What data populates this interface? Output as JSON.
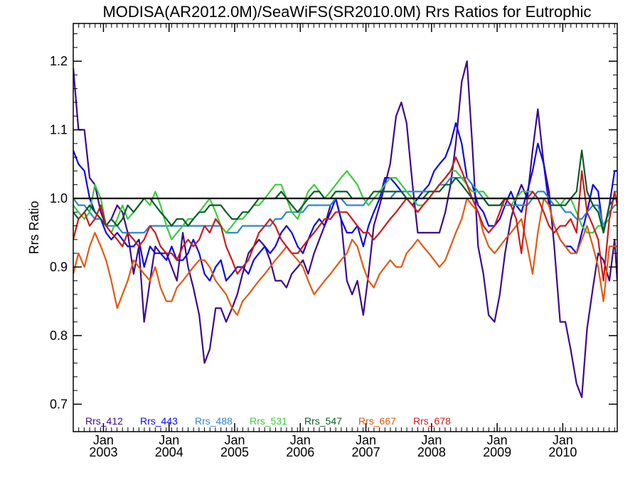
{
  "chart_data": {
    "type": "line",
    "title": "MODISA(AR2012.0M)/SeaWiFS(SR2010.0M)  Rrs Ratios for Eutrophic",
    "ylabel": "Rrs Ratio",
    "xlabel": "",
    "xlim": [
      2002.54,
      2010.83
    ],
    "ylim": [
      0.66,
      1.255
    ],
    "yticks": [
      0.7,
      0.8,
      0.9,
      1.0,
      1.1,
      1.2
    ],
    "ytick_labels": [
      "0.7",
      "0.8",
      "0.9",
      "1.0",
      "1.1",
      "1.2"
    ],
    "xticks": [
      {
        "value": 2003.0,
        "month": "Jan",
        "year": "2003"
      },
      {
        "value": 2004.0,
        "month": "Jan",
        "year": "2004"
      },
      {
        "value": 2005.0,
        "month": "Jan",
        "year": "2005"
      },
      {
        "value": 2006.0,
        "month": "Jan",
        "year": "2006"
      },
      {
        "value": 2007.0,
        "month": "Jan",
        "year": "2007"
      },
      {
        "value": 2008.0,
        "month": "Jan",
        "year": "2008"
      },
      {
        "value": 2009.0,
        "month": "Jan",
        "year": "2009"
      },
      {
        "value": 2010.0,
        "month": "Jan",
        "year": "2010"
      }
    ],
    "reference_line": 1.0,
    "x": [
      2002.54,
      2002.62,
      2002.71,
      2002.79,
      2002.87,
      2002.96,
      2003.04,
      2003.12,
      2003.21,
      2003.29,
      2003.37,
      2003.46,
      2003.54,
      2003.62,
      2003.71,
      2003.79,
      2003.87,
      2003.96,
      2004.04,
      2004.12,
      2004.21,
      2004.29,
      2004.37,
      2004.46,
      2004.54,
      2004.62,
      2004.71,
      2004.79,
      2004.87,
      2004.96,
      2005.04,
      2005.12,
      2005.21,
      2005.29,
      2005.37,
      2005.46,
      2005.54,
      2005.62,
      2005.71,
      2005.79,
      2005.87,
      2005.96,
      2006.04,
      2006.12,
      2006.21,
      2006.29,
      2006.37,
      2006.46,
      2006.54,
      2006.62,
      2006.71,
      2006.79,
      2006.87,
      2006.96,
      2007.04,
      2007.12,
      2007.21,
      2007.29,
      2007.37,
      2007.46,
      2007.54,
      2007.62,
      2007.71,
      2007.79,
      2007.87,
      2007.96,
      2008.04,
      2008.12,
      2008.21,
      2008.29,
      2008.37,
      2008.46,
      2008.54,
      2008.62,
      2008.71,
      2008.79,
      2008.87,
      2008.96,
      2009.04,
      2009.12,
      2009.21,
      2009.29,
      2009.37,
      2009.46,
      2009.54,
      2009.62,
      2009.71,
      2009.79,
      2009.87,
      2009.96,
      2010.04,
      2010.12,
      2010.21,
      2010.29,
      2010.37,
      2010.46,
      2010.54,
      2010.62,
      2010.71,
      2010.79,
      2010.83
    ],
    "series": [
      {
        "name": "Rrs_412",
        "color": "#3d0a8c",
        "values": [
          1.19,
          1.1,
          1.1,
          1.03,
          1.02,
          0.98,
          0.96,
          0.97,
          0.99,
          0.98,
          0.95,
          0.89,
          0.93,
          0.82,
          0.88,
          0.93,
          0.92,
          0.92,
          0.9,
          0.88,
          0.95,
          0.9,
          0.87,
          0.83,
          0.76,
          0.78,
          0.84,
          0.84,
          0.82,
          0.84,
          0.86,
          0.89,
          0.92,
          0.93,
          0.94,
          0.93,
          0.91,
          0.88,
          0.88,
          0.87,
          0.89,
          0.9,
          0.91,
          0.89,
          0.92,
          0.94,
          0.96,
          0.99,
          1.0,
          0.97,
          0.88,
          0.86,
          0.88,
          0.83,
          0.89,
          0.96,
          0.99,
          1.02,
          1.05,
          1.12,
          1.14,
          1.11,
          1.02,
          0.95,
          0.95,
          0.95,
          0.95,
          0.95,
          0.98,
          1.02,
          1.08,
          1.17,
          1.2,
          1.08,
          0.93,
          0.89,
          0.83,
          0.82,
          0.86,
          0.92,
          0.97,
          1.0,
          1.02,
          1.0,
          1.07,
          1.13,
          1.05,
          1.01,
          0.93,
          0.82,
          0.82,
          0.78,
          0.73,
          0.71,
          0.81,
          0.87,
          0.92,
          0.91,
          0.88,
          0.94,
          0.88
        ]
      },
      {
        "name": "Rrs_443",
        "color": "#0a0ae6",
        "values": [
          1.07,
          1.05,
          1.04,
          1.0,
          0.98,
          0.97,
          0.95,
          0.94,
          0.95,
          0.94,
          0.93,
          0.93,
          0.94,
          0.9,
          0.93,
          0.92,
          0.92,
          0.91,
          0.93,
          0.91,
          0.91,
          0.92,
          0.94,
          0.92,
          0.89,
          0.88,
          0.9,
          0.91,
          0.88,
          0.89,
          0.9,
          0.9,
          0.89,
          0.91,
          0.92,
          0.93,
          0.92,
          0.93,
          0.95,
          0.96,
          0.95,
          0.93,
          0.92,
          0.94,
          0.96,
          0.97,
          0.96,
          0.98,
          1.0,
          0.97,
          0.95,
          0.95,
          0.96,
          0.93,
          0.96,
          0.98,
          1.0,
          1.03,
          1.03,
          1.02,
          1.01,
          1.0,
          0.99,
          1.0,
          1.01,
          1.02,
          1.04,
          1.05,
          1.06,
          1.08,
          1.11,
          1.08,
          1.03,
          1.02,
          0.99,
          0.98,
          0.96,
          0.96,
          0.97,
          0.99,
          1.01,
          0.99,
          0.98,
          1.01,
          1.04,
          1.08,
          1.05,
          0.99,
          0.96,
          0.94,
          0.93,
          0.93,
          0.92,
          0.95,
          0.98,
          1.02,
          1.01,
          0.95,
          0.99,
          1.04,
          1.04
        ]
      },
      {
        "name": "Rrs_488",
        "color": "#2e86d0",
        "values": [
          1.0,
          0.99,
          0.99,
          0.98,
          0.97,
          0.97,
          0.96,
          0.96,
          0.96,
          0.95,
          0.95,
          0.95,
          0.95,
          0.95,
          0.96,
          0.96,
          0.96,
          0.96,
          0.96,
          0.96,
          0.96,
          0.96,
          0.96,
          0.96,
          0.96,
          0.96,
          0.96,
          0.96,
          0.95,
          0.95,
          0.95,
          0.96,
          0.96,
          0.96,
          0.96,
          0.96,
          0.96,
          0.97,
          0.97,
          0.98,
          0.98,
          0.98,
          0.98,
          0.99,
          0.99,
          0.99,
          0.99,
          0.99,
          1.0,
          1.0,
          0.99,
          0.99,
          0.99,
          0.99,
          1.0,
          1.0,
          1.0,
          1.0,
          1.0,
          1.01,
          1.01,
          1.01,
          1.01,
          1.01,
          1.01,
          1.01,
          1.01,
          1.02,
          1.02,
          1.03,
          1.03,
          1.03,
          1.03,
          1.02,
          1.01,
          1.0,
          0.99,
          0.99,
          0.99,
          0.99,
          0.99,
          0.99,
          0.99,
          0.99,
          1.0,
          1.01,
          1.01,
          1.0,
          0.99,
          0.99,
          0.98,
          0.98,
          0.97,
          0.97,
          0.98,
          0.99,
          0.99,
          0.96,
          0.98,
          0.99,
          0.99
        ]
      },
      {
        "name": "Rrs_531",
        "color": "#3ccc3c",
        "values": [
          0.99,
          0.98,
          0.97,
          0.98,
          1.02,
          1.0,
          0.96,
          0.95,
          0.97,
          0.99,
          0.97,
          0.98,
          0.99,
          1.0,
          0.99,
          1.01,
          0.99,
          0.96,
          0.94,
          0.95,
          0.96,
          0.97,
          0.97,
          0.98,
          0.99,
          1.0,
          0.98,
          0.96,
          0.95,
          0.96,
          0.97,
          0.97,
          0.98,
          0.99,
          0.99,
          1.0,
          1.01,
          1.02,
          1.02,
          1.0,
          0.98,
          0.97,
          0.99,
          1.01,
          1.02,
          1.01,
          1.0,
          1.01,
          1.02,
          1.03,
          1.04,
          1.03,
          1.02,
          1.0,
          0.99,
          1.0,
          1.01,
          1.02,
          1.03,
          1.03,
          1.02,
          1.01,
          1.0,
          0.99,
          0.99,
          1.0,
          1.01,
          1.02,
          1.03,
          1.04,
          1.04,
          1.03,
          1.02,
          1.01,
          1.01,
          1.01,
          1.0,
          1.0,
          1.0,
          1.0,
          0.99,
          1.0,
          1.01,
          1.01,
          1.01,
          1.0,
          1.0,
          1.0,
          1.0,
          0.99,
          1.0,
          1.0,
          0.98,
          0.96,
          0.95,
          0.95,
          0.96,
          0.96,
          0.97,
          1.01,
          1.01
        ]
      },
      {
        "name": "Rrs_547",
        "color": "#0a5c28",
        "values": [
          0.98,
          0.97,
          0.98,
          0.99,
          0.98,
          0.97,
          0.96,
          0.97,
          0.96,
          0.97,
          0.99,
          0.98,
          0.99,
          1.0,
          1.0,
          0.99,
          0.98,
          0.97,
          0.96,
          0.97,
          0.97,
          0.96,
          0.97,
          0.98,
          0.98,
          0.99,
          0.99,
          0.99,
          0.98,
          0.97,
          0.97,
          0.98,
          0.98,
          0.99,
          1.0,
          1.0,
          1.0,
          1.0,
          1.01,
          1.0,
          0.99,
          0.98,
          0.99,
          1.0,
          1.01,
          1.01,
          1.0,
          1.0,
          1.01,
          1.01,
          1.01,
          1.0,
          1.0,
          1.0,
          1.0,
          1.01,
          1.01,
          1.01,
          1.01,
          1.01,
          1.01,
          1.0,
          1.0,
          1.0,
          1.0,
          1.01,
          1.01,
          1.01,
          1.02,
          1.02,
          1.03,
          1.02,
          1.01,
          1.0,
          1.0,
          1.0,
          0.99,
          0.99,
          0.99,
          1.0,
          1.0,
          1.0,
          1.0,
          1.0,
          1.0,
          1.0,
          1.0,
          0.99,
          0.99,
          0.99,
          0.99,
          1.0,
          1.01,
          1.07,
          1.01,
          0.99,
          0.98,
          0.95,
          0.99,
          1.0,
          1.0
        ]
      },
      {
        "name": "Rrs_667",
        "color": "#e05a10",
        "values": [
          0.89,
          0.92,
          0.9,
          0.93,
          0.95,
          0.93,
          0.91,
          0.88,
          0.84,
          0.86,
          0.88,
          0.91,
          0.9,
          0.89,
          0.88,
          0.9,
          0.87,
          0.85,
          0.85,
          0.87,
          0.88,
          0.89,
          0.9,
          0.91,
          0.91,
          0.9,
          0.88,
          0.87,
          0.86,
          0.84,
          0.83,
          0.85,
          0.86,
          0.87,
          0.88,
          0.89,
          0.9,
          0.91,
          0.92,
          0.93,
          0.92,
          0.91,
          0.9,
          0.88,
          0.86,
          0.87,
          0.88,
          0.89,
          0.9,
          0.91,
          0.92,
          0.94,
          0.93,
          0.9,
          0.88,
          0.87,
          0.89,
          0.9,
          0.91,
          0.9,
          0.9,
          0.92,
          0.93,
          0.94,
          0.93,
          0.92,
          0.91,
          0.9,
          0.91,
          0.93,
          0.95,
          0.97,
          1.0,
          0.99,
          0.98,
          0.95,
          0.93,
          0.92,
          0.93,
          0.94,
          0.95,
          0.96,
          0.97,
          0.93,
          0.89,
          0.95,
          1.0,
          0.99,
          0.96,
          0.94,
          0.93,
          0.92,
          0.92,
          0.94,
          0.96,
          0.93,
          0.9,
          0.85,
          0.93,
          0.93,
          0.93
        ]
      },
      {
        "name": "Rrs_678",
        "color": "#cc1a1a",
        "values": [
          0.94,
          0.97,
          0.98,
          0.96,
          0.97,
          0.99,
          0.96,
          0.95,
          0.94,
          0.93,
          0.95,
          0.94,
          0.93,
          0.94,
          0.96,
          0.95,
          0.93,
          0.92,
          0.92,
          0.91,
          0.93,
          0.94,
          0.93,
          0.94,
          0.96,
          0.95,
          0.97,
          0.96,
          0.93,
          0.91,
          0.89,
          0.9,
          0.91,
          0.93,
          0.95,
          0.96,
          0.97,
          0.96,
          0.94,
          0.93,
          0.92,
          0.92,
          0.93,
          0.94,
          0.95,
          0.96,
          0.97,
          0.97,
          0.98,
          0.98,
          0.98,
          0.97,
          0.96,
          0.95,
          0.95,
          0.94,
          0.95,
          0.96,
          0.97,
          0.98,
          0.99,
          1.0,
          0.99,
          0.98,
          0.99,
          1.0,
          1.01,
          1.02,
          1.03,
          1.04,
          1.06,
          1.04,
          1.02,
          1.0,
          0.98,
          0.96,
          0.95,
          0.96,
          0.98,
          1.0,
          0.99,
          0.97,
          0.92,
          1.0,
          1.01,
          1.0,
          0.98,
          0.96,
          0.95,
          0.96,
          0.96,
          0.97,
          0.95,
          1.04,
          0.98,
          0.96,
          0.94,
          0.88,
          0.97,
          1.01,
          0.99
        ]
      }
    ]
  }
}
